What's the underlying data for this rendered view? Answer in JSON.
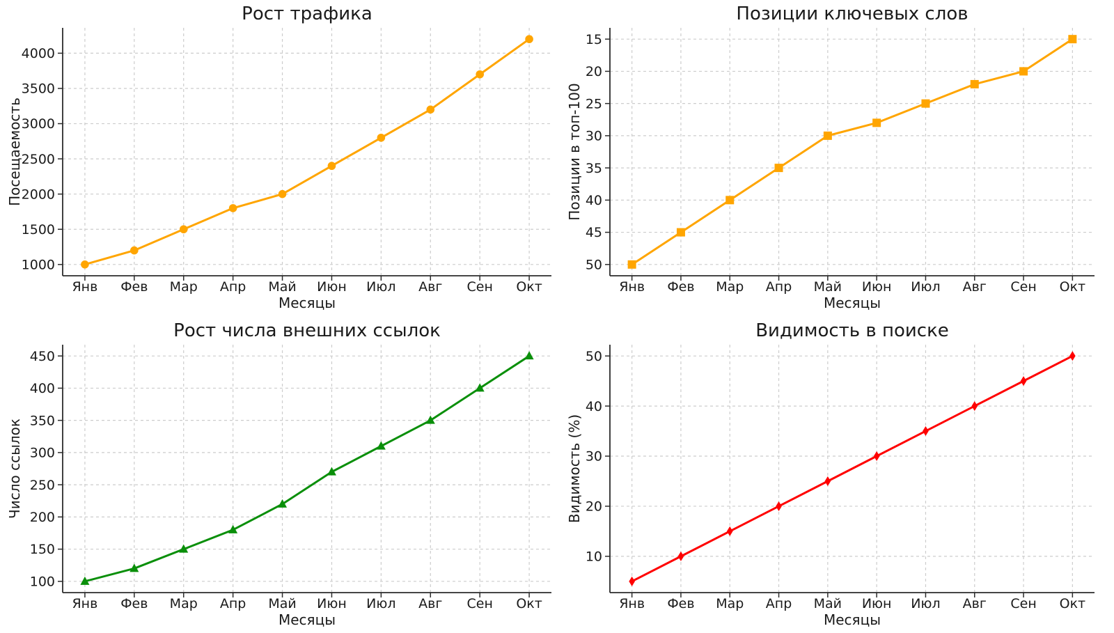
{
  "page": {
    "background": "#ffffff",
    "layout": "2x2-subplots"
  },
  "style": {
    "text_color": "#1a1a1a",
    "axis_color": "#2b2b2b",
    "grid_color": "#cccccc",
    "grid_dash": "4 4",
    "line_width": 3
  },
  "chart_data": [
    {
      "type": "line",
      "title": "Рост трафика",
      "xlabel": "Месяцы",
      "ylabel": "Посещаемость",
      "categories": [
        "Янв",
        "Фев",
        "Мар",
        "Апр",
        "Май",
        "Июн",
        "Июл",
        "Авг",
        "Сен",
        "Окт"
      ],
      "values": [
        1000,
        1200,
        1500,
        1800,
        2000,
        2400,
        2800,
        3200,
        3700,
        4200
      ],
      "yticks": [
        1000,
        1500,
        2000,
        2500,
        3000,
        3500,
        4000
      ],
      "ylim": [
        840,
        4360
      ],
      "xlim": [
        -0.45,
        9.45
      ],
      "y_inverted": false,
      "grid": true,
      "legend": "none",
      "color": "#FFA500",
      "marker": "circle"
    },
    {
      "type": "line",
      "title": "Позиции ключевых слов",
      "xlabel": "Месяцы",
      "ylabel": "Позиции в топ-100",
      "categories": [
        "Янв",
        "Фев",
        "Мар",
        "Апр",
        "Май",
        "Июн",
        "Июл",
        "Авг",
        "Сен",
        "Окт"
      ],
      "values": [
        50,
        45,
        40,
        35,
        30,
        28,
        25,
        22,
        20,
        15
      ],
      "yticks": [
        15,
        20,
        25,
        30,
        35,
        40,
        45,
        50
      ],
      "ylim": [
        13.25,
        51.75
      ],
      "xlim": [
        -0.45,
        9.45
      ],
      "y_inverted": true,
      "grid": true,
      "legend": "none",
      "color": "#FFA500",
      "marker": "square"
    },
    {
      "type": "line",
      "title": "Рост числа внешних ссылок",
      "xlabel": "Месяцы",
      "ylabel": "Число ссылок",
      "categories": [
        "Янв",
        "Фев",
        "Мар",
        "Апр",
        "Май",
        "Июн",
        "Июл",
        "Авг",
        "Сен",
        "Окт"
      ],
      "values": [
        100,
        120,
        150,
        180,
        220,
        270,
        310,
        350,
        400,
        450
      ],
      "yticks": [
        100,
        150,
        200,
        250,
        300,
        350,
        400,
        450
      ],
      "ylim": [
        82.5,
        467.5
      ],
      "xlim": [
        -0.45,
        9.45
      ],
      "y_inverted": false,
      "grid": true,
      "legend": "none",
      "color": "#0a8f0a",
      "marker": "triangle-up"
    },
    {
      "type": "line",
      "title": "Видимость в поиске",
      "xlabel": "Месяцы",
      "ylabel": "Видимость (%)",
      "categories": [
        "Янв",
        "Фев",
        "Мар",
        "Апр",
        "Май",
        "Июн",
        "Июл",
        "Авг",
        "Сен",
        "Окт"
      ],
      "values": [
        5,
        10,
        15,
        20,
        25,
        30,
        35,
        40,
        45,
        50
      ],
      "yticks": [
        10,
        20,
        30,
        40,
        50
      ],
      "ylim": [
        2.75,
        52.25
      ],
      "xlim": [
        -0.45,
        9.45
      ],
      "y_inverted": false,
      "grid": true,
      "legend": "none",
      "color": "#FF0000",
      "marker": "thin-diamond"
    }
  ]
}
